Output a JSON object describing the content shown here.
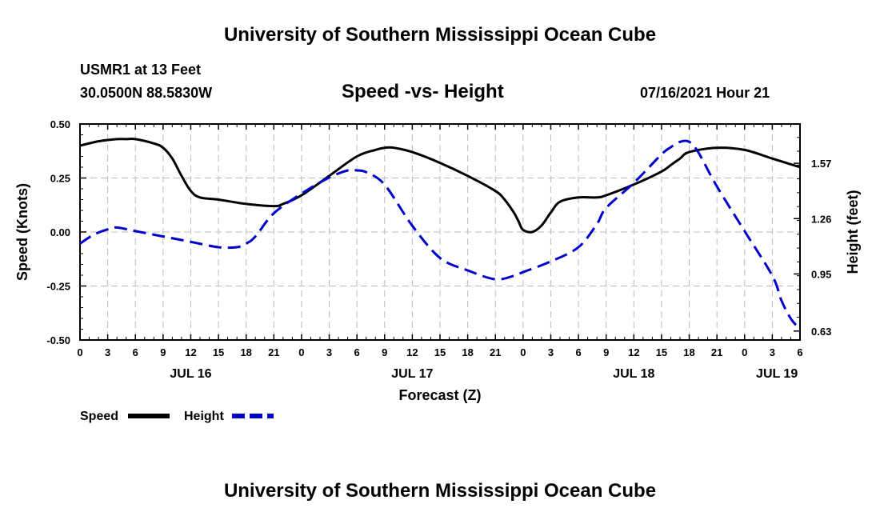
{
  "header": {
    "title": "University of Southern Mississippi Ocean Cube",
    "station": "USMR1 at 13 Feet",
    "coordinates": "30.0500N  88.5830W",
    "subtitle": "Speed -vs- Height",
    "datetime": "07/16/2021 Hour 21"
  },
  "footer": {
    "title": "University of Southern Mississippi Ocean Cube"
  },
  "colors": {
    "speed": "#000000",
    "height": "#0000cc",
    "grid": "#bbbbbb"
  },
  "chart_data": {
    "type": "line",
    "title": "Speed -vs- Height",
    "xlabel": "Forecast (Z)",
    "ylabel_left": "Speed (Knots)",
    "ylabel_right": "Height (feet)",
    "x_unit": "hours from Jul 16 00Z",
    "xlim": [
      0,
      78
    ],
    "x_ticks": [
      0,
      3,
      6,
      9,
      12,
      15,
      18,
      21,
      24,
      27,
      30,
      33,
      36,
      39,
      42,
      45,
      48,
      51,
      54,
      57,
      60,
      63,
      66,
      69,
      72,
      75,
      78
    ],
    "x_tick_labels": [
      "0",
      "3",
      "6",
      "9",
      "12",
      "15",
      "18",
      "21",
      "0",
      "3",
      "6",
      "9",
      "12",
      "15",
      "18",
      "21",
      "0",
      "3",
      "6",
      "9",
      "12",
      "15",
      "18",
      "21",
      "0",
      "3",
      "6"
    ],
    "day_labels": [
      {
        "x": 12,
        "label": "JUL 16"
      },
      {
        "x": 36,
        "label": "JUL 17"
      },
      {
        "x": 60,
        "label": "JUL 18"
      },
      {
        "x": 75.5,
        "label": "JUL 19"
      }
    ],
    "ylim_left": [
      -0.5,
      0.5
    ],
    "y_ticks_left": [
      "0.50",
      "0.25",
      "0.00",
      "-0.25",
      "-0.50"
    ],
    "ylim_right": [
      0.58,
      1.79
    ],
    "y_ticks_right": [
      "1.57",
      "1.26",
      "0.95",
      "0.63"
    ],
    "grid": true,
    "legend": {
      "placement": "bottom-left",
      "speed_label": "Speed",
      "height_label": "Height"
    },
    "series": [
      {
        "name": "Speed",
        "axis": "left",
        "style": "solid",
        "x": [
          0,
          2,
          4,
          5,
          6,
          8,
          9,
          10,
          11,
          12,
          13,
          15,
          18,
          21,
          22,
          24,
          27,
          30,
          32,
          33,
          34,
          36,
          39,
          42,
          45,
          46,
          47,
          47.5,
          48,
          49,
          50,
          51,
          52,
          54,
          56,
          57,
          60,
          63,
          64,
          65,
          66,
          69,
          72,
          75,
          78
        ],
        "y": [
          0.4,
          0.42,
          0.43,
          0.43,
          0.43,
          0.41,
          0.39,
          0.34,
          0.26,
          0.19,
          0.16,
          0.15,
          0.13,
          0.12,
          0.13,
          0.17,
          0.26,
          0.35,
          0.38,
          0.39,
          0.39,
          0.37,
          0.32,
          0.26,
          0.19,
          0.15,
          0.09,
          0.05,
          0.01,
          0.0,
          0.03,
          0.09,
          0.14,
          0.16,
          0.16,
          0.17,
          0.22,
          0.28,
          0.31,
          0.34,
          0.37,
          0.39,
          0.38,
          0.34,
          0.3
        ]
      },
      {
        "name": "Height",
        "axis": "right",
        "style": "dashed",
        "x": [
          0,
          1.5,
          3,
          4,
          6,
          9,
          12,
          15,
          17,
          18,
          19,
          21,
          24,
          27,
          29,
          30,
          31,
          33,
          36,
          39,
          42,
          45,
          47,
          48,
          51,
          54,
          56,
          57,
          60,
          63,
          64,
          65,
          66,
          67,
          69,
          72,
          75,
          76,
          77,
          78
        ],
        "y": [
          1.12,
          1.17,
          1.2,
          1.21,
          1.19,
          1.16,
          1.13,
          1.1,
          1.1,
          1.12,
          1.16,
          1.29,
          1.4,
          1.49,
          1.53,
          1.53,
          1.52,
          1.45,
          1.22,
          1.04,
          0.97,
          0.92,
          0.94,
          0.96,
          1.02,
          1.1,
          1.23,
          1.32,
          1.46,
          1.62,
          1.66,
          1.69,
          1.69,
          1.63,
          1.44,
          1.19,
          0.94,
          0.8,
          0.7,
          0.64
        ]
      }
    ]
  }
}
